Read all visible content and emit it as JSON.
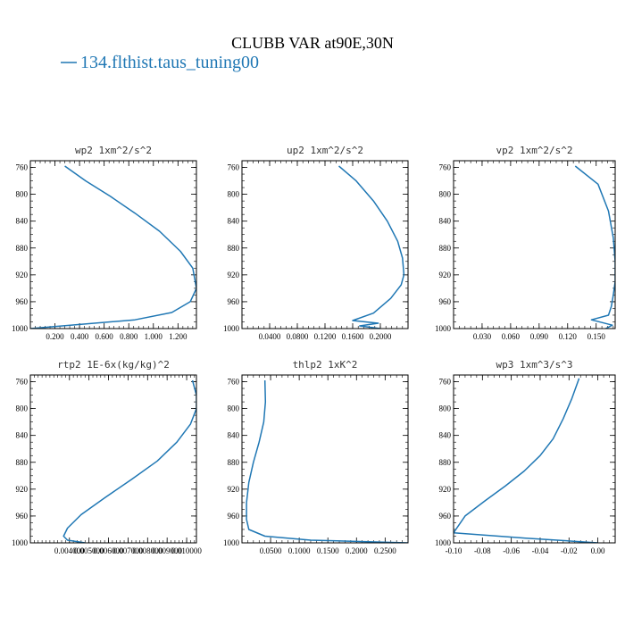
{
  "figure": {
    "title": "CLUBB VAR at90E,30N",
    "legend_label": "134.flthist.taus_tuning00",
    "series_color": "#1f77b4"
  },
  "chart_data": [
    {
      "type": "line",
      "title": "wp2  1xm^2/s^2",
      "xlim": [
        0.0,
        1.35
      ],
      "ylim": [
        1000,
        750
      ],
      "x_ticks": [
        0.2,
        0.4,
        0.6,
        0.8,
        1.0,
        1.2
      ],
      "x_tick_labels": [
        "0.200",
        "0.400",
        "0.600",
        "0.800",
        "1.000",
        "1.200"
      ],
      "y_ticks": [
        760,
        800,
        840,
        880,
        920,
        960,
        1000
      ],
      "y_tick_labels": [
        "760",
        "800",
        "840",
        "880",
        "920",
        "960",
        "1000"
      ],
      "x": [
        0.28,
        0.45,
        0.65,
        0.85,
        1.05,
        1.22,
        1.32,
        1.35,
        1.3,
        1.15,
        0.85,
        0.0
      ],
      "y": [
        758,
        780,
        803,
        828,
        855,
        885,
        910,
        940,
        960,
        976,
        987,
        1000
      ]
    },
    {
      "type": "line",
      "title": "up2  1xm^2/s^2",
      "xlim": [
        0.0,
        0.24
      ],
      "ylim": [
        1000,
        750
      ],
      "x_ticks": [
        0.04,
        0.08,
        0.12,
        0.16,
        0.2
      ],
      "x_tick_labels": [
        "0.0400",
        "0.0800",
        "0.1200",
        "0.1600",
        "0.2000"
      ],
      "y_ticks": [
        760,
        800,
        840,
        880,
        920,
        960,
        1000
      ],
      "y_tick_labels": [
        "760",
        "800",
        "840",
        "880",
        "920",
        "960",
        "1000"
      ],
      "x": [
        0.14,
        0.165,
        0.19,
        0.21,
        0.225,
        0.232,
        0.234,
        0.23,
        0.215,
        0.19,
        0.16,
        0.197,
        0.17,
        0.2
      ],
      "y": [
        758,
        780,
        810,
        840,
        870,
        895,
        920,
        935,
        955,
        977,
        988,
        992,
        996,
        1000
      ]
    },
    {
      "type": "line",
      "title": "vp2  1xm^2/s^2",
      "xlim": [
        0.0,
        0.17
      ],
      "ylim": [
        1000,
        750
      ],
      "x_ticks": [
        0.03,
        0.06,
        0.09,
        0.12,
        0.15
      ],
      "x_tick_labels": [
        "0.030",
        "0.060",
        "0.090",
        "0.120",
        "0.150"
      ],
      "y_ticks": [
        760,
        800,
        840,
        880,
        920,
        960,
        1000
      ],
      "y_tick_labels": [
        "760",
        "800",
        "840",
        "880",
        "920",
        "960",
        "1000"
      ],
      "x": [
        0.128,
        0.152,
        0.163,
        0.168,
        0.17,
        0.17,
        0.168,
        0.166,
        0.163,
        0.145,
        0.167,
        0.16
      ],
      "y": [
        758,
        785,
        825,
        865,
        900,
        930,
        950,
        967,
        980,
        987,
        995,
        1000
      ]
    },
    {
      "type": "line",
      "title": "rtp2  1E-6x(kg/kg)^2",
      "xlim": [
        0.002,
        0.0105
      ],
      "ylim": [
        1000,
        750
      ],
      "x_ticks": [
        0.004,
        0.005,
        0.006,
        0.007,
        0.008,
        0.009,
        0.01
      ],
      "x_tick_labels": [
        "0.004000",
        "0.005000",
        "0.006000",
        "0.007000",
        "0.008000",
        "0.009000",
        "0.010000"
      ],
      "y_ticks": [
        760,
        800,
        840,
        880,
        920,
        960,
        1000
      ],
      "y_tick_labels": [
        "760",
        "800",
        "840",
        "880",
        "920",
        "960",
        "1000"
      ],
      "x": [
        0.0103,
        0.0105,
        0.0105,
        0.0102,
        0.0095,
        0.0085,
        0.0072,
        0.0058,
        0.0046,
        0.0039,
        0.0037,
        0.0039,
        0.0048
      ],
      "y": [
        758,
        780,
        800,
        823,
        850,
        878,
        905,
        933,
        958,
        978,
        990,
        996,
        1000
      ]
    },
    {
      "type": "line",
      "title": "thlp2  1xK^2",
      "xlim": [
        0.0,
        0.29
      ],
      "ylim": [
        1000,
        750
      ],
      "x_ticks": [
        0.05,
        0.1,
        0.15,
        0.2,
        0.25
      ],
      "x_tick_labels": [
        "0.0500",
        "0.1000",
        "0.1500",
        "0.2000",
        "0.2500"
      ],
      "y_ticks": [
        760,
        800,
        840,
        880,
        920,
        960,
        1000
      ],
      "y_tick_labels": [
        "760",
        "800",
        "840",
        "880",
        "920",
        "960",
        "1000"
      ],
      "x": [
        0.04,
        0.041,
        0.038,
        0.03,
        0.02,
        0.012,
        0.008,
        0.008,
        0.012,
        0.04,
        0.12,
        0.29
      ],
      "y": [
        758,
        790,
        820,
        850,
        880,
        910,
        940,
        965,
        980,
        990,
        996,
        1000
      ]
    },
    {
      "type": "line",
      "title": "wp3  1xm^3/s^3",
      "xlim": [
        -0.1,
        0.012
      ],
      "ylim": [
        1000,
        750
      ],
      "x_ticks": [
        -0.1,
        -0.08,
        -0.06,
        -0.04,
        -0.02,
        0.0
      ],
      "x_tick_labels": [
        "-0.10",
        "-0.08",
        "-0.06",
        "-0.04",
        "-0.02",
        "0.00"
      ],
      "y_ticks": [
        760,
        800,
        840,
        880,
        920,
        960,
        1000
      ],
      "y_tick_labels": [
        "760",
        "800",
        "840",
        "880",
        "920",
        "960",
        "1000"
      ],
      "x": [
        -0.013,
        -0.018,
        -0.024,
        -0.031,
        -0.04,
        -0.051,
        -0.064,
        -0.078,
        -0.092,
        -0.1,
        -0.05,
        0.0
      ],
      "y": [
        755,
        785,
        815,
        845,
        870,
        893,
        915,
        937,
        960,
        985,
        993,
        1000
      ]
    }
  ]
}
